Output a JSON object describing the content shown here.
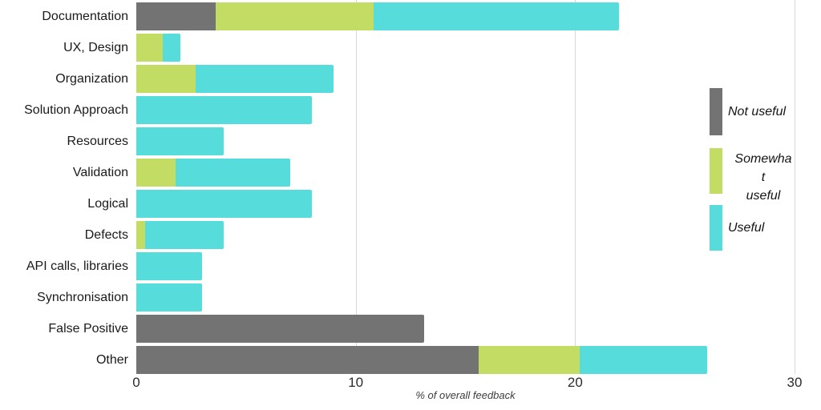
{
  "chart_data": {
    "type": "bar",
    "orientation": "horizontal",
    "stacked": true,
    "title": "",
    "xlabel": "% of overall feedback",
    "ylabel": "",
    "xlim": [
      0,
      30
    ],
    "x_ticks": [
      "0",
      "10",
      "20",
      "30"
    ],
    "grid": "vertical-light-gray",
    "legend_position": "right",
    "categories": [
      "Documentation",
      "UX, Design",
      "Organization",
      "Solution Approach",
      "Resources",
      "Validation",
      "Logical",
      "Defects",
      "API calls, libraries",
      "Synchronisation",
      "False Positive",
      "Other"
    ],
    "series": [
      {
        "name": "Not useful",
        "color": "#737373",
        "values": [
          3.6,
          0,
          0,
          0,
          0,
          0,
          0,
          0,
          0,
          0,
          13.1,
          15.6
        ]
      },
      {
        "name": "Somewhat useful",
        "color": "#c3dc63",
        "values": [
          7.2,
          1.2,
          2.7,
          0,
          0,
          1.8,
          0,
          0.4,
          0,
          0,
          0,
          4.6
        ]
      },
      {
        "name": "Useful",
        "color": "#57dcdc",
        "values": [
          11.2,
          0.8,
          6.3,
          8,
          4,
          5.2,
          8,
          3.6,
          3,
          3,
          0,
          5.8
        ]
      }
    ]
  },
  "legend": {
    "items": [
      {
        "label": "Not useful",
        "lines": [
          "Not useful"
        ],
        "color": "#737373"
      },
      {
        "label": "Somewhat useful",
        "lines": [
          "Somewha",
          "t",
          "useful"
        ],
        "color": "#c3dc63"
      },
      {
        "label": "Useful",
        "lines": [
          "Useful"
        ],
        "color": "#57dcdc"
      }
    ]
  }
}
